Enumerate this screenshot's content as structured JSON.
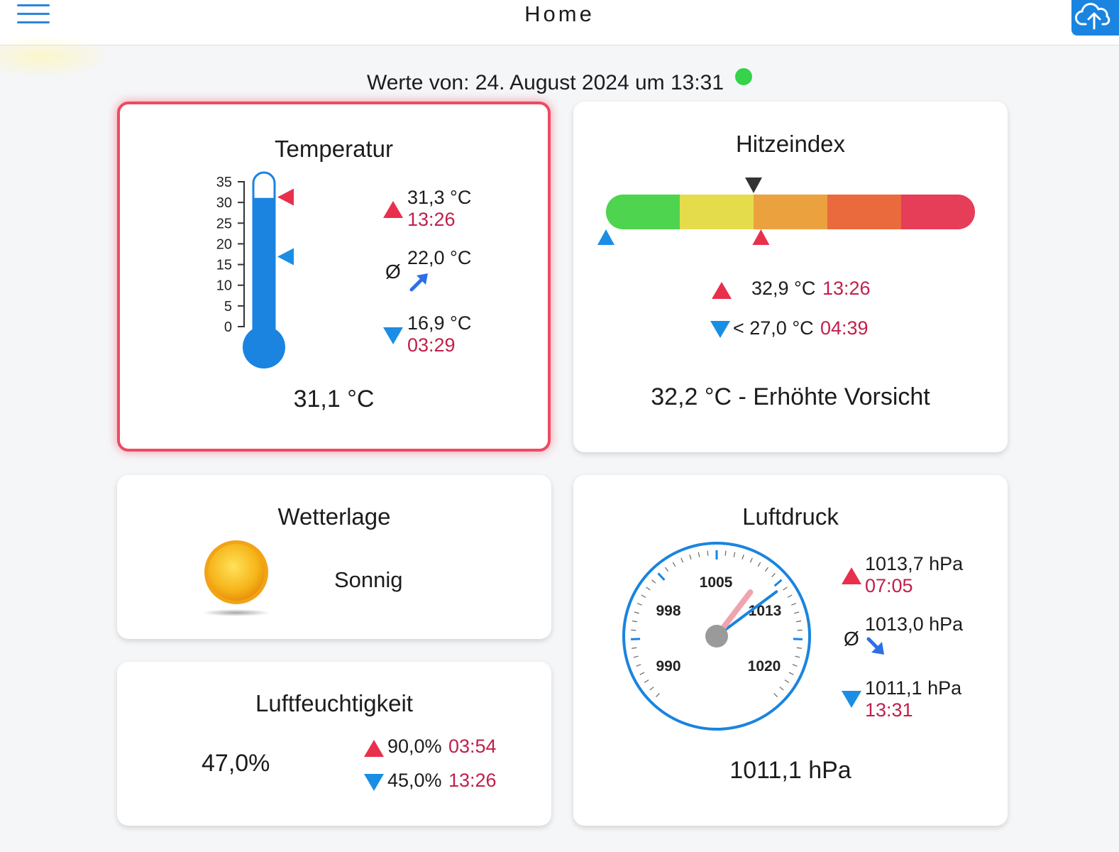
{
  "header": {
    "title": "Home",
    "menu_icon": "menu-icon",
    "upload_icon": "cloud-upload-icon"
  },
  "status": {
    "text": "Werte von: 24. August 2024 um 13:31",
    "indicator_color": "#35d24a"
  },
  "temperature": {
    "title": "Temperatur",
    "scale_ticks": [
      "35",
      "30",
      "25",
      "20",
      "15",
      "10",
      "5",
      "0"
    ],
    "scale_min": 0,
    "scale_max": 35,
    "fill_value": 31.1,
    "max_marker_value": 31.3,
    "min_marker_value": 16.9,
    "max_value": "31,3 °C",
    "max_time": "13:26",
    "avg_symbol": "Ø",
    "avg_value": "22,0 °C",
    "avg_trend_icon": "arrow-up-right-icon",
    "min_value": "16,9 °C",
    "min_time": "03:29",
    "current": "31,1 °C"
  },
  "heat_index": {
    "title": "Hitzeindex",
    "bar_colors": [
      "#4ed44e",
      "#e5dc4c",
      "#eba23e",
      "#ea6a3e",
      "#e63d58"
    ],
    "current_position_fraction": 0.4,
    "max_position_fraction": 0.42,
    "min_position_fraction": 0.0,
    "max_value": "32,9 °C",
    "max_time": "13:26",
    "min_value": "< 27,0 °C",
    "min_time": "04:39",
    "current": "32,2 °C - Erhöhte Vorsicht"
  },
  "weather": {
    "title": "Wetterlage",
    "icon": "sun-icon",
    "condition": "Sonnig"
  },
  "humidity": {
    "title": "Luftfeuchtigkeit",
    "current": "47,0%",
    "max_value": "90,0%",
    "max_time": "03:54",
    "min_value": "45,0%",
    "min_time": "13:26"
  },
  "pressure": {
    "title": "Luftdruck",
    "gauge_labels": [
      "1005",
      "998",
      "1013",
      "990",
      "1020"
    ],
    "gauge_min": 983,
    "gauge_max": 1027,
    "needle_value": 1011.1,
    "max_needle_value": 1013.7,
    "max_value": "1013,7 hPa",
    "max_time": "07:05",
    "avg_symbol": "Ø",
    "avg_value": "1013,0 hPa",
    "avg_trend_icon": "arrow-down-right-icon",
    "min_value": "1011,1 hPa",
    "min_time": "13:31",
    "current": "1011,1 hPa"
  }
}
